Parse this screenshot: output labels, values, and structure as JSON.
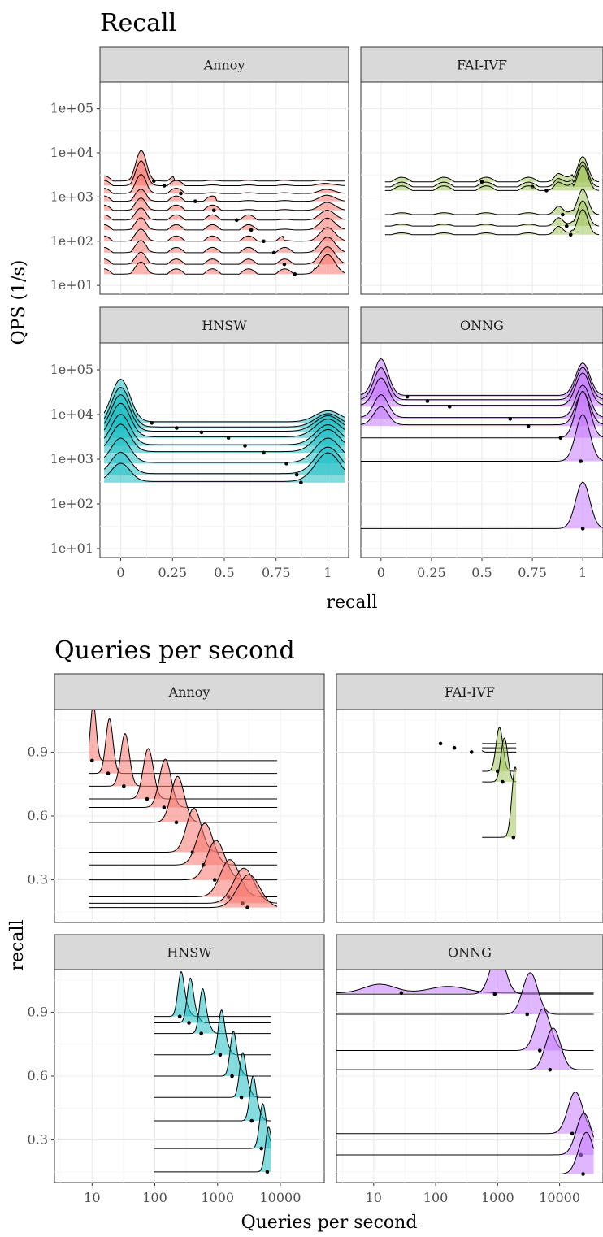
{
  "chart_data": [
    {
      "type": "ridgeline",
      "title": "Recall",
      "xlabel": "recall",
      "ylabel": "QPS (1/s)",
      "x_ticks": [
        "0",
        "0.25",
        "0.5",
        "0.75",
        "1"
      ],
      "y_ticks": [
        "1e+01",
        "1e+02",
        "1e+03",
        "1e+04",
        "1e+05"
      ],
      "xlim": [
        -0.1,
        1.1
      ],
      "ylim_log10": [
        0.8,
        5.6
      ],
      "panels": [
        {
          "name": "Annoy",
          "color": "#F8766D",
          "ridges": [
            {
              "qps": 2300,
              "median": 0.16
            },
            {
              "qps": 1800,
              "median": 0.21
            },
            {
              "qps": 1200,
              "median": 0.29
            },
            {
              "qps": 800,
              "median": 0.36
            },
            {
              "qps": 500,
              "median": 0.45
            },
            {
              "qps": 300,
              "median": 0.56
            },
            {
              "qps": 180,
              "median": 0.63
            },
            {
              "qps": 100,
              "median": 0.69
            },
            {
              "qps": 55,
              "median": 0.74
            },
            {
              "qps": 30,
              "median": 0.79
            },
            {
              "qps": 18,
              "median": 0.84
            }
          ]
        },
        {
          "name": "FAI-IVF",
          "color": "#A3C45C",
          "ridges": [
            {
              "qps": 2200,
              "median": 0.5
            },
            {
              "qps": 1700,
              "median": 0.75
            },
            {
              "qps": 1400,
              "median": 0.82
            },
            {
              "qps": 400,
              "median": 0.9
            },
            {
              "qps": 220,
              "median": 0.92
            },
            {
              "qps": 140,
              "median": 0.94
            }
          ]
        },
        {
          "name": "HNSW",
          "color": "#1FBFC4",
          "ridges": [
            {
              "qps": 6500,
              "median": 0.15
            },
            {
              "qps": 5000,
              "median": 0.27
            },
            {
              "qps": 4000,
              "median": 0.39
            },
            {
              "qps": 3000,
              "median": 0.52
            },
            {
              "qps": 2000,
              "median": 0.6
            },
            {
              "qps": 1400,
              "median": 0.69
            },
            {
              "qps": 800,
              "median": 0.8
            },
            {
              "qps": 450,
              "median": 0.85
            },
            {
              "qps": 300,
              "median": 0.87
            }
          ]
        },
        {
          "name": "ONNG",
          "color": "#C77CFF",
          "ridges": [
            {
              "qps": 25000,
              "median": 0.13
            },
            {
              "qps": 20000,
              "median": 0.23
            },
            {
              "qps": 15000,
              "median": 0.34
            },
            {
              "qps": 8000,
              "median": 0.64
            },
            {
              "qps": 5500,
              "median": 0.73
            },
            {
              "qps": 3000,
              "median": 0.89
            },
            {
              "qps": 900,
              "median": 0.99
            },
            {
              "qps": 28,
              "median": 1.0
            }
          ]
        }
      ]
    },
    {
      "type": "ridgeline",
      "title": "Queries per second",
      "xlabel": "Queries per second",
      "ylabel": "recall",
      "x_ticks": [
        "10",
        "100",
        "1000",
        "10000"
      ],
      "y_ticks": [
        "0.3",
        "0.6",
        "0.9"
      ],
      "xlim_log10": [
        0.4,
        4.7
      ],
      "ylim": [
        0.1,
        1.1
      ],
      "panels": [
        {
          "name": "Annoy",
          "color": "#F8766D",
          "ridges": [
            {
              "recall": 0.86,
              "median_qps": 10
            },
            {
              "recall": 0.8,
              "median_qps": 18
            },
            {
              "recall": 0.74,
              "median_qps": 32
            },
            {
              "recall": 0.68,
              "median_qps": 75
            },
            {
              "recall": 0.64,
              "median_qps": 140
            },
            {
              "recall": 0.57,
              "median_qps": 220
            },
            {
              "recall": 0.43,
              "median_qps": 400
            },
            {
              "recall": 0.37,
              "median_qps": 600
            },
            {
              "recall": 0.3,
              "median_qps": 900
            },
            {
              "recall": 0.22,
              "median_qps": 1500
            },
            {
              "recall": 0.19,
              "median_qps": 2500
            },
            {
              "recall": 0.17,
              "median_qps": 3000
            }
          ]
        },
        {
          "name": "FAI-IVF",
          "color": "#A3C45C",
          "ridges": [
            {
              "recall": 0.94,
              "median_qps": 120
            },
            {
              "recall": 0.92,
              "median_qps": 200
            },
            {
              "recall": 0.9,
              "median_qps": 380
            },
            {
              "recall": 0.81,
              "median_qps": 1000
            },
            {
              "recall": 0.76,
              "median_qps": 1200
            },
            {
              "recall": 0.5,
              "median_qps": 1800
            }
          ]
        },
        {
          "name": "HNSW",
          "color": "#1FBFC4",
          "ridges": [
            {
              "recall": 0.88,
              "median_qps": 250
            },
            {
              "recall": 0.85,
              "median_qps": 350
            },
            {
              "recall": 0.8,
              "median_qps": 550
            },
            {
              "recall": 0.7,
              "median_qps": 1100
            },
            {
              "recall": 0.6,
              "median_qps": 1700
            },
            {
              "recall": 0.5,
              "median_qps": 2400
            },
            {
              "recall": 0.39,
              "median_qps": 3500
            },
            {
              "recall": 0.26,
              "median_qps": 5000
            },
            {
              "recall": 0.15,
              "median_qps": 6200
            }
          ]
        },
        {
          "name": "ONNG",
          "color": "#C77CFF",
          "ridges": [
            {
              "recall": 0.99,
              "median_qps": 28
            },
            {
              "recall": 0.985,
              "median_qps": 900
            },
            {
              "recall": 0.89,
              "median_qps": 3000
            },
            {
              "recall": 0.72,
              "median_qps": 4800
            },
            {
              "recall": 0.63,
              "median_qps": 7000
            },
            {
              "recall": 0.33,
              "median_qps": 16000
            },
            {
              "recall": 0.23,
              "median_qps": 22000
            },
            {
              "recall": 0.14,
              "median_qps": 24000
            }
          ]
        }
      ]
    }
  ]
}
